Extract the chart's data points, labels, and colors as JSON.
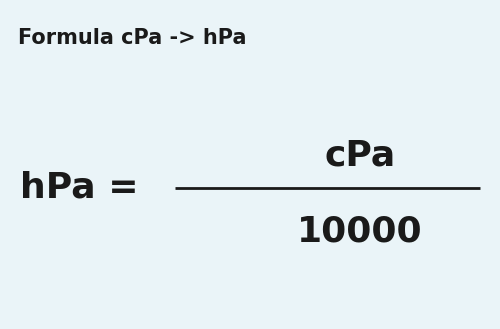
{
  "background_color": "#eaf4f8",
  "title_text": "Formula cPa -> hPa",
  "title_fontsize": 15,
  "title_fontweight": "bold",
  "title_color": "#1a1a1a",
  "numerator_text": "cPa",
  "denominator_text": "10000",
  "lhs_text": "hPa =",
  "main_fontsize": 26,
  "main_fontweight": "bold",
  "main_color": "#1a1a1a",
  "line_color": "#1a1a1a",
  "line_width": 2.0,
  "fig_width": 5.0,
  "fig_height": 3.29,
  "dpi": 100
}
